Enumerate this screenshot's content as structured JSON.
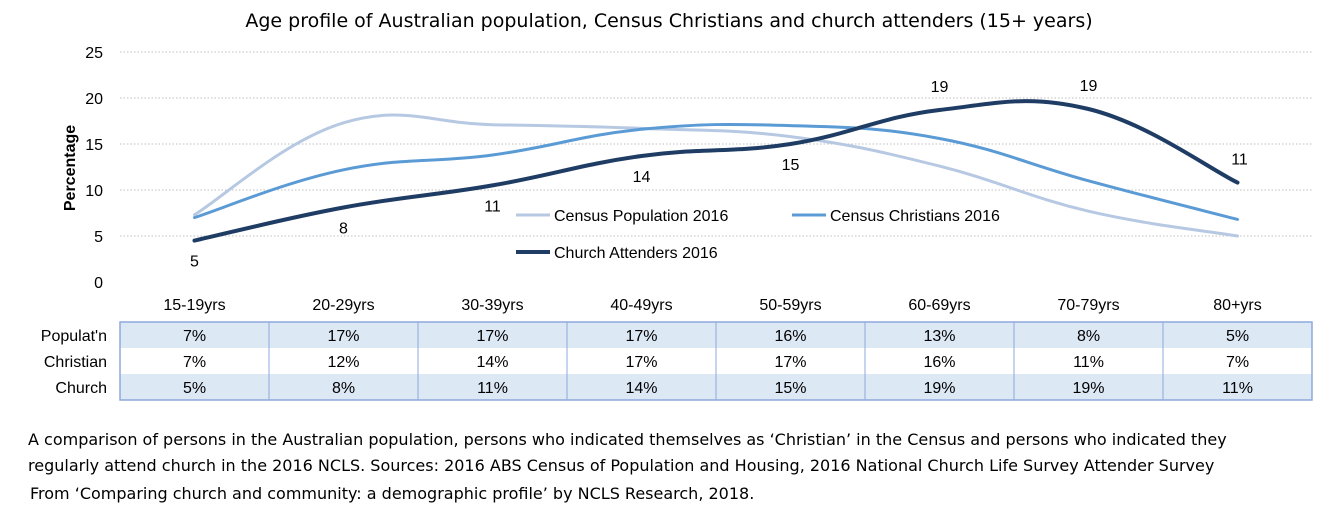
{
  "chart_data": {
    "type": "line",
    "title": "Age profile of Australian population, Census Christians and church attenders (15+ years)",
    "ylabel": "Percentage",
    "xlabel": "",
    "ylim": [
      0,
      25
    ],
    "yticks": [
      "0",
      "5",
      "10",
      "15",
      "20",
      "25"
    ],
    "grid": true,
    "legend_position": "center-right",
    "categories": [
      "15-19yrs",
      "20-29yrs",
      "30-39yrs",
      "40-49yrs",
      "50-59yrs",
      "60-69yrs",
      "70-79yrs",
      "80+yrs"
    ],
    "series": [
      {
        "name": "Census Population 2016",
        "values": [
          7.3,
          17.3,
          17.1,
          16.7,
          15.8,
          12.6,
          7.7,
          5.0
        ],
        "color": "#b7c9e2"
      },
      {
        "name": "Census Christians 2016",
        "values": [
          7.0,
          12.2,
          13.8,
          16.6,
          17.0,
          15.6,
          11.0,
          6.8
        ],
        "color": "#5b9bd5"
      },
      {
        "name": "Church Attenders 2016",
        "values": [
          4.5,
          8.1,
          10.5,
          13.7,
          15.0,
          18.7,
          18.8,
          10.8
        ],
        "color": "#1f3d64"
      }
    ],
    "data_labels": {
      "series": "Church Attenders 2016",
      "values": [
        "5",
        "8",
        "11",
        "14",
        "15",
        "19",
        "19",
        "11"
      ]
    },
    "table": {
      "rows": [
        {
          "label": "Populat'n",
          "values": [
            "7%",
            "17%",
            "17%",
            "17%",
            "16%",
            "13%",
            "8%",
            "5%"
          ]
        },
        {
          "label": "Christian",
          "values": [
            "7%",
            "12%",
            "14%",
            "17%",
            "17%",
            "16%",
            "11%",
            "7%"
          ]
        },
        {
          "label": "Church",
          "values": [
            "5%",
            "8%",
            "11%",
            "14%",
            "15%",
            "19%",
            "19%",
            "11%"
          ]
        }
      ],
      "shade_color": "#dde8f5",
      "border_color": "#8ea9db"
    }
  },
  "caption": {
    "line1": "A comparison of persons in the Australian population, persons who indicated themselves as ‘Christian’ in the Census and persons who indicated they",
    "line2": "regularly attend church in the 2016 NCLS. Sources: 2016 ABS Census of Population and Housing, 2016 National Church Life Survey Attender Survey",
    "line3": "From ‘Comparing church and community: a demographic profile’ by NCLS Research, 2018."
  }
}
